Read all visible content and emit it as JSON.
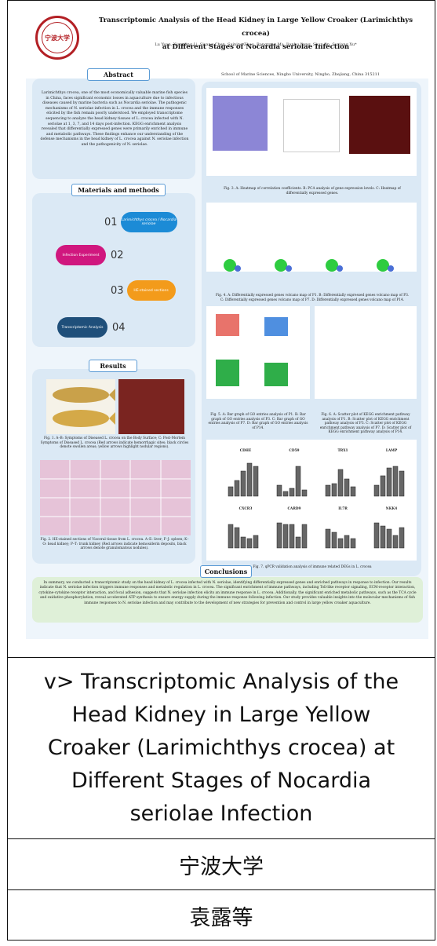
{
  "poster": {
    "logo_text": "宁波大学",
    "title_line1": "Transcriptomic Analysis of the Head Kidney in Large Yellow Croaker (Larimichthys crocea)",
    "title_line2": "at Different Stages of Nocardia seriolae Infection",
    "authors": "Lu Yuan, Xiangling Li, Siyang Chen, Saining Zhou, Rongrong Ma, Jianhu Jiang, Shan Jin, Suxiang Xu*",
    "affiliation": "School of Marine Sciences, Ningbo University, Ningbo, Zhejiang, China 315211",
    "abstract_head": "Abstract",
    "abstract_text": "Larimichthys crocea, one of the most economically valuable marine fish species in China, faces significant economic losses in aquaculture due to infectious diseases caused by marine bacteria such as Nocardia seriolae. The pathogenic mechanisms of N. seriolae infection in L. crocea and the immune responses elicited by the fish remain poorly understood. We employed transcriptome sequencing to analyze the head kidney tissues of L. crocea infected with N. seriolae at 1, 3, 7, and 14 days post-infection. KEGG enrichment analysis revealed that differentially expressed genes were primarily enriched in immune and metabolic pathways. These findings enhance our understanding of the defense mechanisms in the head kidney of L. crocea against N. seriolae infection and the pathogenicity of N. seriolae.",
    "methods_head": "Materials and methods",
    "methods": [
      {
        "num": "01",
        "label": "Larimichthys crocea / Nocardia seriolae"
      },
      {
        "num": "02",
        "label": "Infection Experiment"
      },
      {
        "num": "03",
        "label": "HE-stained sections"
      },
      {
        "num": "04",
        "label": "Transcriptomic Analysis"
      }
    ],
    "results_head": "Results",
    "fig1_caption": "Fig. 1. A–B: Symptoms of Diseased L. crocea on the Body Surface; C: Post-Mortem Symptoms of Diseased L. crocea (Red arrows indicate hemorrhagic sites; black circles denote swollen areas; yellow arrows highlight nodular regions).",
    "fig2_caption": "Fig. 2. HE-stained sections of Visceral tissue from L. crocea. A–E: liver; F–J: spleen; K–O: head kidney; P–T: trunk kidney (Red arrows indicate hemosiderin deposits, black arrows denote granulomatous nodules).",
    "fig3_caption": "Fig. 3. A: Heatmap of correlation coefficients. B: PCA analysis of gene expression levels. C: Heatmap of differentially expressed genes.",
    "fig4_caption": "Fig. 4. A: Differentially expressed genes volcano map of P1. B: Differentially expressed genes volcano map of P3. C: Differentially expressed genes volcano map of P7. D: Differentially expressed genes volcano map of P14.",
    "fig5_caption": "Fig. 5. A: Bar graph of GO entries analysis of P1. B: Bar graph of GO entries analysis of P3. C: Bar graph of GO entries analysis of P7. D: Bar graph of GO entries analysis of P14.",
    "fig6_caption": "Fig. 6. A: Scatter plot of KEGG enrichment pathway analysis of P1. B: Scatter plot of KEGG enrichment pathway analysis of P3. C: Scatter plot of KEGG enrichment pathway analysis of P7. D: Scatter plot of KEGG enrichment pathway analysis of P14.",
    "fig7_caption": "Fig. 7. qPCR validation analysis of immune related DEGs in L. crocea",
    "fig7_genes": [
      "CDHE",
      "CD59",
      "TRX1",
      "LAMP",
      "CXCR3",
      "CARD9",
      "IL7R",
      "NKK4"
    ],
    "conclusions_head": "Conclusions",
    "conclusions_text": "In summary, we conducted a transcriptomic study on the head kidney of L. crocea infected with N. seriolae, identifying differentially expressed genes and enriched pathways in response to infection. Our results indicate that N. seriolae infection triggers immune responses and metabolic regulation in L. crocea. The significant enrichment of immune pathways, including Toll-like receptor signaling, ECM-receptor interaction, cytokine-cytokine receptor interaction, and focal adhesion, suggests that N. seriolae infection elicits an immune response in L. crocea. Additionally, the significant enriched metabolic pathways, such as the TCA cycle and oxidative phosphorylation, reveal accelerated ATP synthesis to ensure energy supply during the immune response following infection. Our study provides valuable insights into the molecular mechanisms of fish immune responses to N. seriolae infection and may contribute to the development of new strategies for prevention and control in large yellow croaker aquaculture."
  },
  "table": {
    "title": "v> Transcriptomic Analysis of the Head Kidney in Large Yellow Croaker (Larimichthys crocea) at Different Stages of Nocardia seriolae Infection",
    "institution": "宁波大学",
    "authors": "袁露等"
  },
  "colors": {
    "border": "#111111",
    "panel_blue": "#dbe9f5",
    "accent_red": "#b32025",
    "conclusion_green": "#dff0d8"
  }
}
